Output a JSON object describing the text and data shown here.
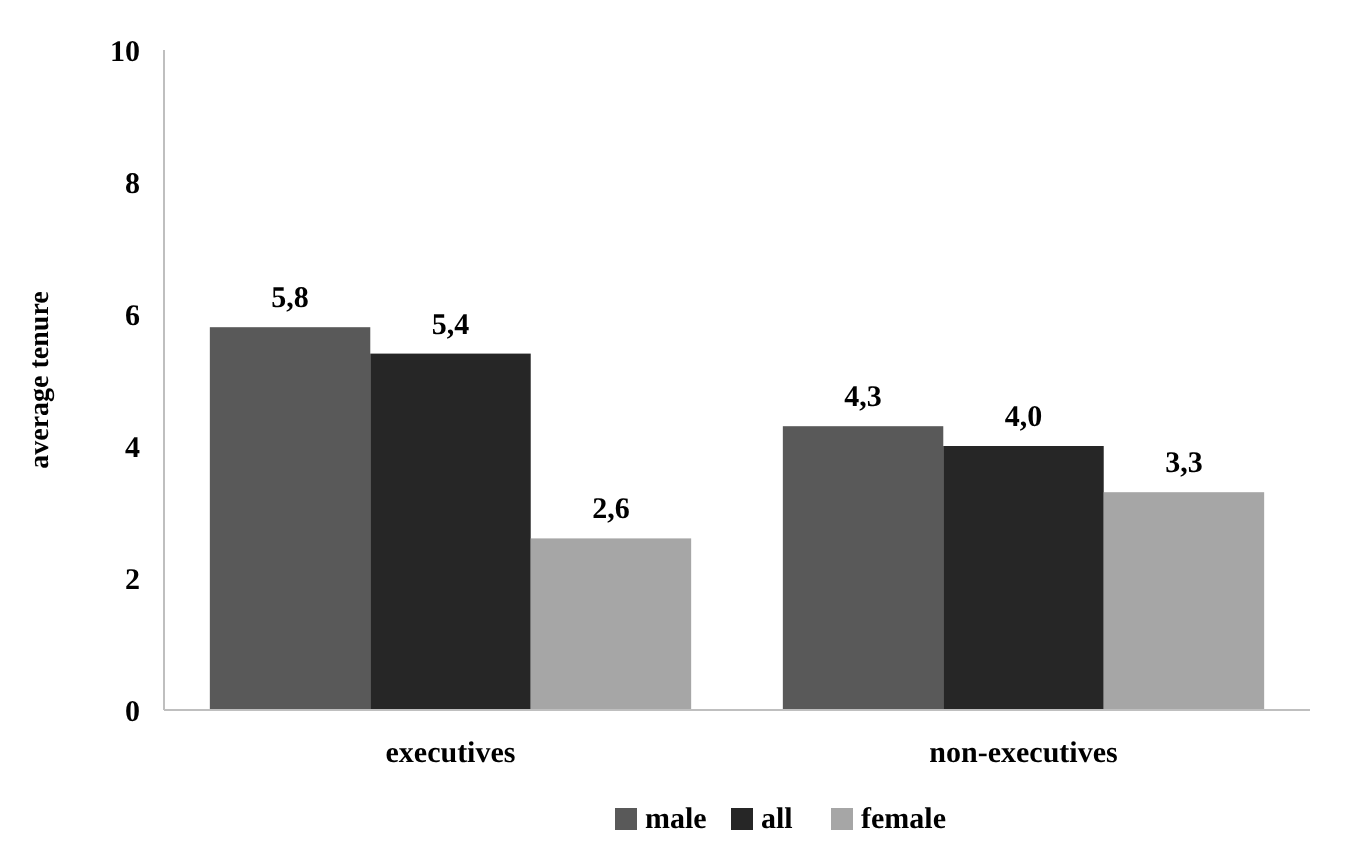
{
  "chart_data": {
    "type": "bar",
    "ylabel": "average tenure",
    "categories": [
      "executives",
      "non-executives"
    ],
    "series": [
      {
        "name": "male",
        "color": "#595959",
        "values": [
          5.8,
          4.3
        ],
        "value_labels": [
          "5,8",
          "4,3"
        ]
      },
      {
        "name": "all",
        "color": "#262626",
        "values": [
          5.4,
          4.0
        ],
        "value_labels": [
          "5,4",
          "4,0"
        ]
      },
      {
        "name": "female",
        "color": "#a6a6a6",
        "values": [
          2.6,
          3.3
        ],
        "value_labels": [
          "2,6",
          "3,3"
        ]
      }
    ],
    "ylim": [
      0,
      10
    ],
    "yticks": [
      0,
      2,
      4,
      6,
      8,
      10
    ],
    "grid": false,
    "legend": "bottom"
  }
}
